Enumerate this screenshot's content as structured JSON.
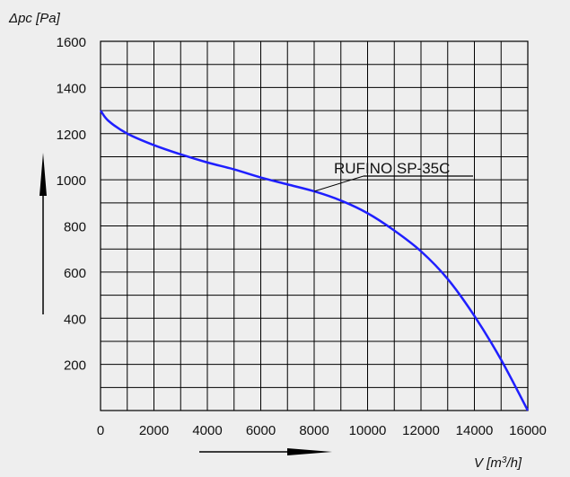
{
  "chart_data": {
    "type": "line",
    "title": "",
    "ylabel": "Δpc [Pa]",
    "xlabel_main": "V [m",
    "xlabel_sup": "3",
    "xlabel_end": "/h]",
    "xlim": [
      0,
      16000
    ],
    "ylim": [
      0,
      1600
    ],
    "x_ticks": [
      0,
      2000,
      4000,
      6000,
      8000,
      10000,
      12000,
      14000,
      16000
    ],
    "y_ticks": [
      200,
      400,
      600,
      800,
      1000,
      1200,
      1400,
      1600
    ],
    "grid": true,
    "grid_x_step": 1000,
    "grid_y_step": 100,
    "series": [
      {
        "name": "RUFINO SP-35C",
        "color": "#1f1fff",
        "x": [
          0,
          300,
          1000,
          2000,
          3000,
          4000,
          5000,
          6000,
          7000,
          8000,
          9000,
          10000,
          11000,
          12000,
          13000,
          14000,
          15000,
          16000
        ],
        "y": [
          1300,
          1255,
          1200,
          1150,
          1110,
          1075,
          1045,
          1010,
          980,
          950,
          910,
          855,
          780,
          690,
          570,
          410,
          220,
          0
        ]
      }
    ],
    "annotation": {
      "text": "RUFINO SP-35C",
      "points_to": [
        8000,
        950
      ]
    }
  }
}
